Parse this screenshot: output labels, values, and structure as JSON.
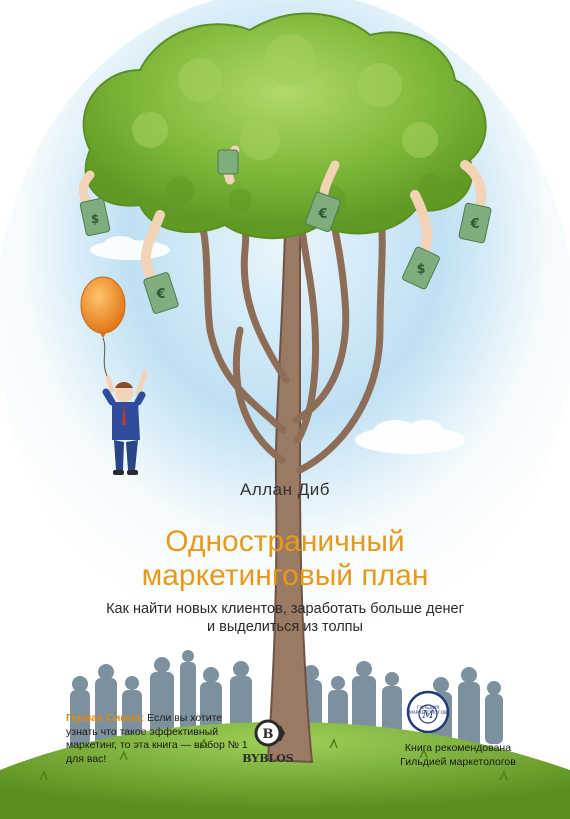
{
  "book": {
    "author": "Аллан Диб",
    "title_line1": "Одностраничный",
    "title_line2": "маркетинговый план",
    "subtitle_line1": "Как найти новых клиентов, заработать больше денег",
    "subtitle_line2": "и выделиться из толпы"
  },
  "quote": {
    "author": "Герман Симон:",
    "text": "Если вы хотите узнать что такое эффективный маркетинг, то эта книга — выбор № 1 для вас!"
  },
  "guild": {
    "badge_letter": "М",
    "badge_text": "ГИЛЬДИЯ МАРКЕТОЛОГОВ",
    "recommend_line1": "Книга рекомендована",
    "recommend_line2": "Гильдией маркетологов"
  },
  "publisher": {
    "logo_letter": "B",
    "name": "BYBLOS"
  },
  "currency": [
    "$",
    "€",
    "€",
    "$",
    "€"
  ],
  "colors": {
    "title": "#e79a1a",
    "quote_author": "#e08a10",
    "foliage": "#7fb83a",
    "trunk": "#9a7a63",
    "grass": "#6aa02a",
    "sky": "#a8d3ee",
    "balloon": "#f0902a"
  }
}
